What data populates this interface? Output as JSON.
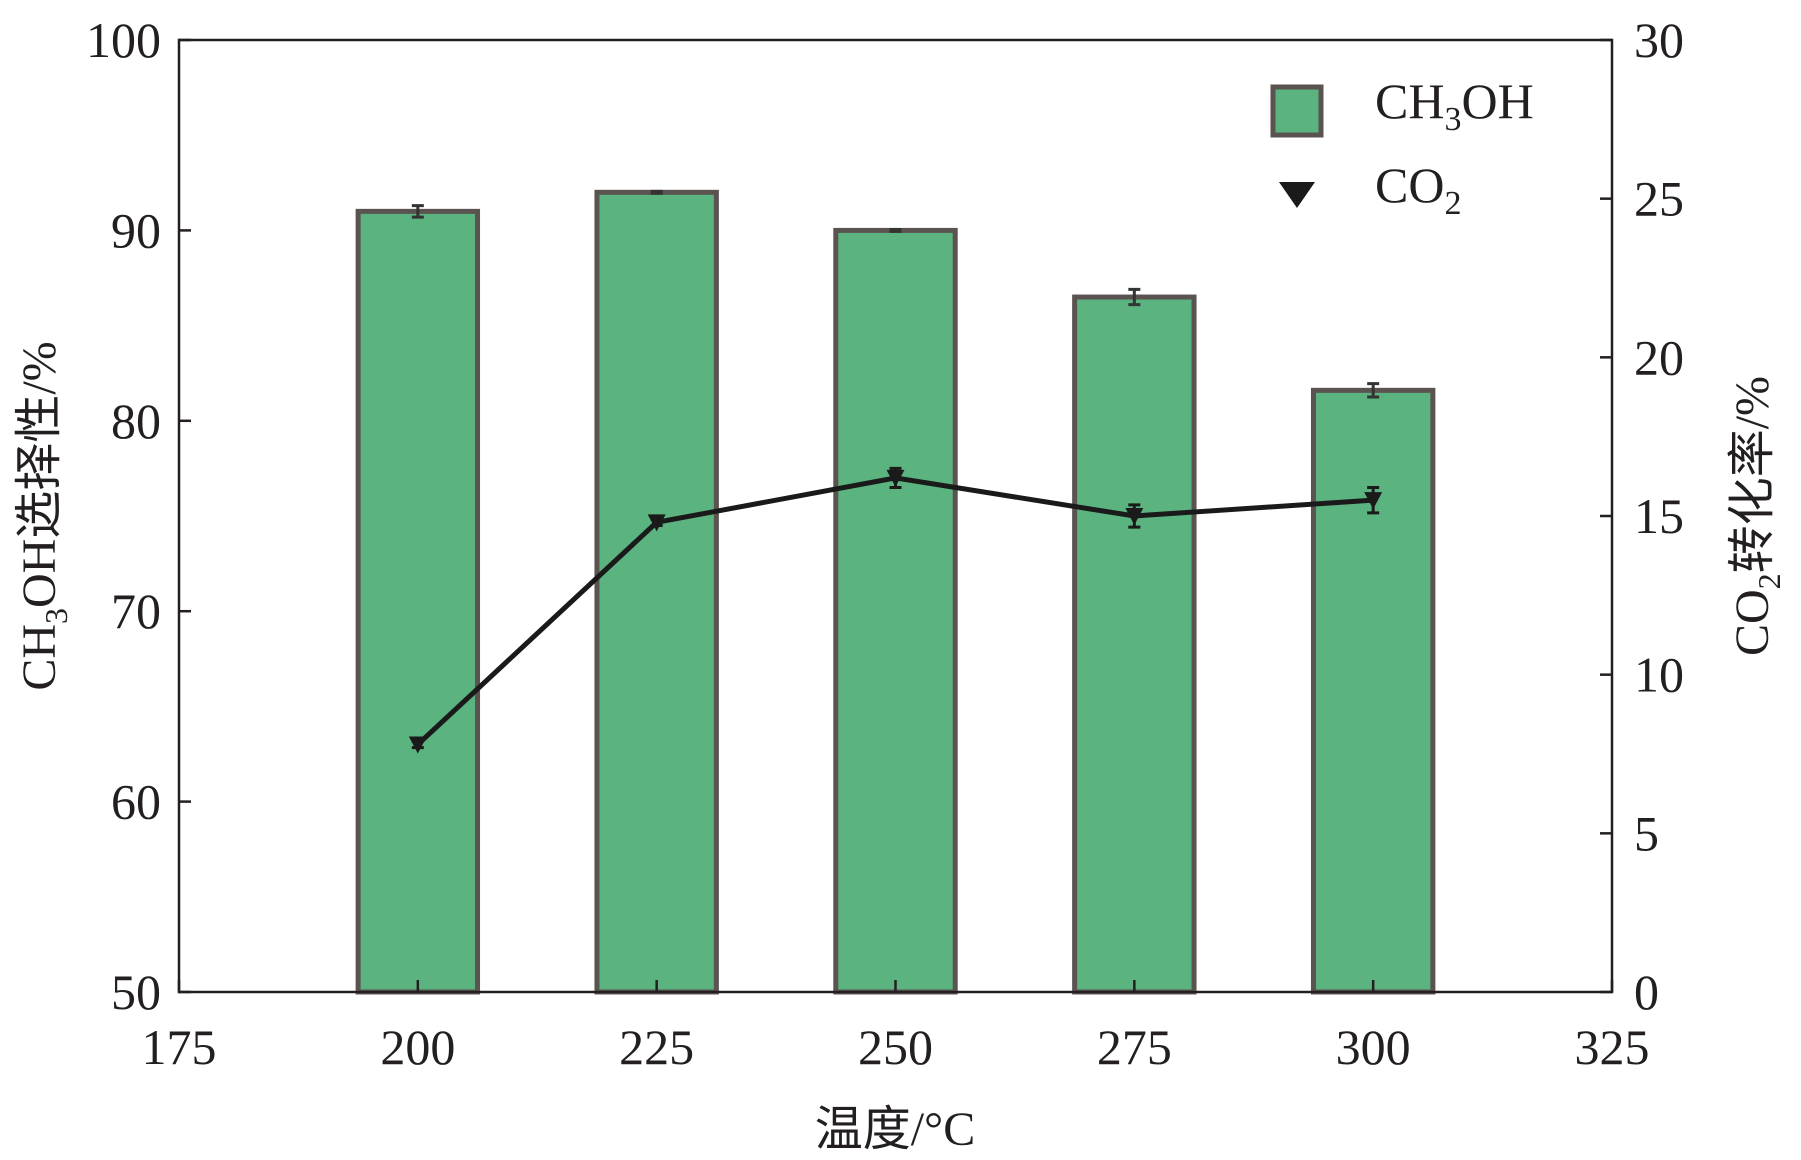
{
  "chart_data": {
    "type": "bar",
    "xlabel": "温度/°C",
    "ylabel": "CH3OH选择性/%",
    "ylabel_parts": {
      "pre": "CH",
      "sub": "3",
      "post": "OH选择性/%"
    },
    "y2label_parts": {
      "pre": "CO",
      "sub": "2",
      "post": "转化率/%"
    },
    "xlim": [
      175,
      325
    ],
    "xticks": [
      175,
      200,
      225,
      250,
      275,
      300,
      325
    ],
    "ylim": [
      50,
      100
    ],
    "yticks": [
      50,
      60,
      70,
      80,
      90,
      100
    ],
    "y2lim": [
      0,
      30
    ],
    "y2ticks": [
      0,
      5,
      10,
      15,
      20,
      25,
      30
    ],
    "x": [
      200,
      225,
      250,
      275,
      300
    ],
    "bar_width": 12.5,
    "series": [
      {
        "name": "CH3OH",
        "label_parts": {
          "pre": "CH",
          "sub": "3",
          "post": "OH"
        },
        "type": "bar",
        "axis": "left",
        "values": [
          91.0,
          92.0,
          90.0,
          86.5,
          81.6
        ],
        "errors": [
          0.3,
          0.05,
          0.05,
          0.4,
          0.35
        ],
        "color": "#5bb37f",
        "edge_color": "#5a5350"
      },
      {
        "name": "CO2",
        "label_parts": {
          "pre": "CO",
          "sub": "2",
          "post": ""
        },
        "type": "line",
        "axis": "right",
        "marker": "triangle-down",
        "values": [
          7.8,
          14.8,
          16.2,
          15.0,
          15.5
        ],
        "errors": [
          0.1,
          0.1,
          0.3,
          0.35,
          0.4
        ],
        "color": "#1a1a1a"
      }
    ],
    "legend": "top-right",
    "grid": false
  }
}
